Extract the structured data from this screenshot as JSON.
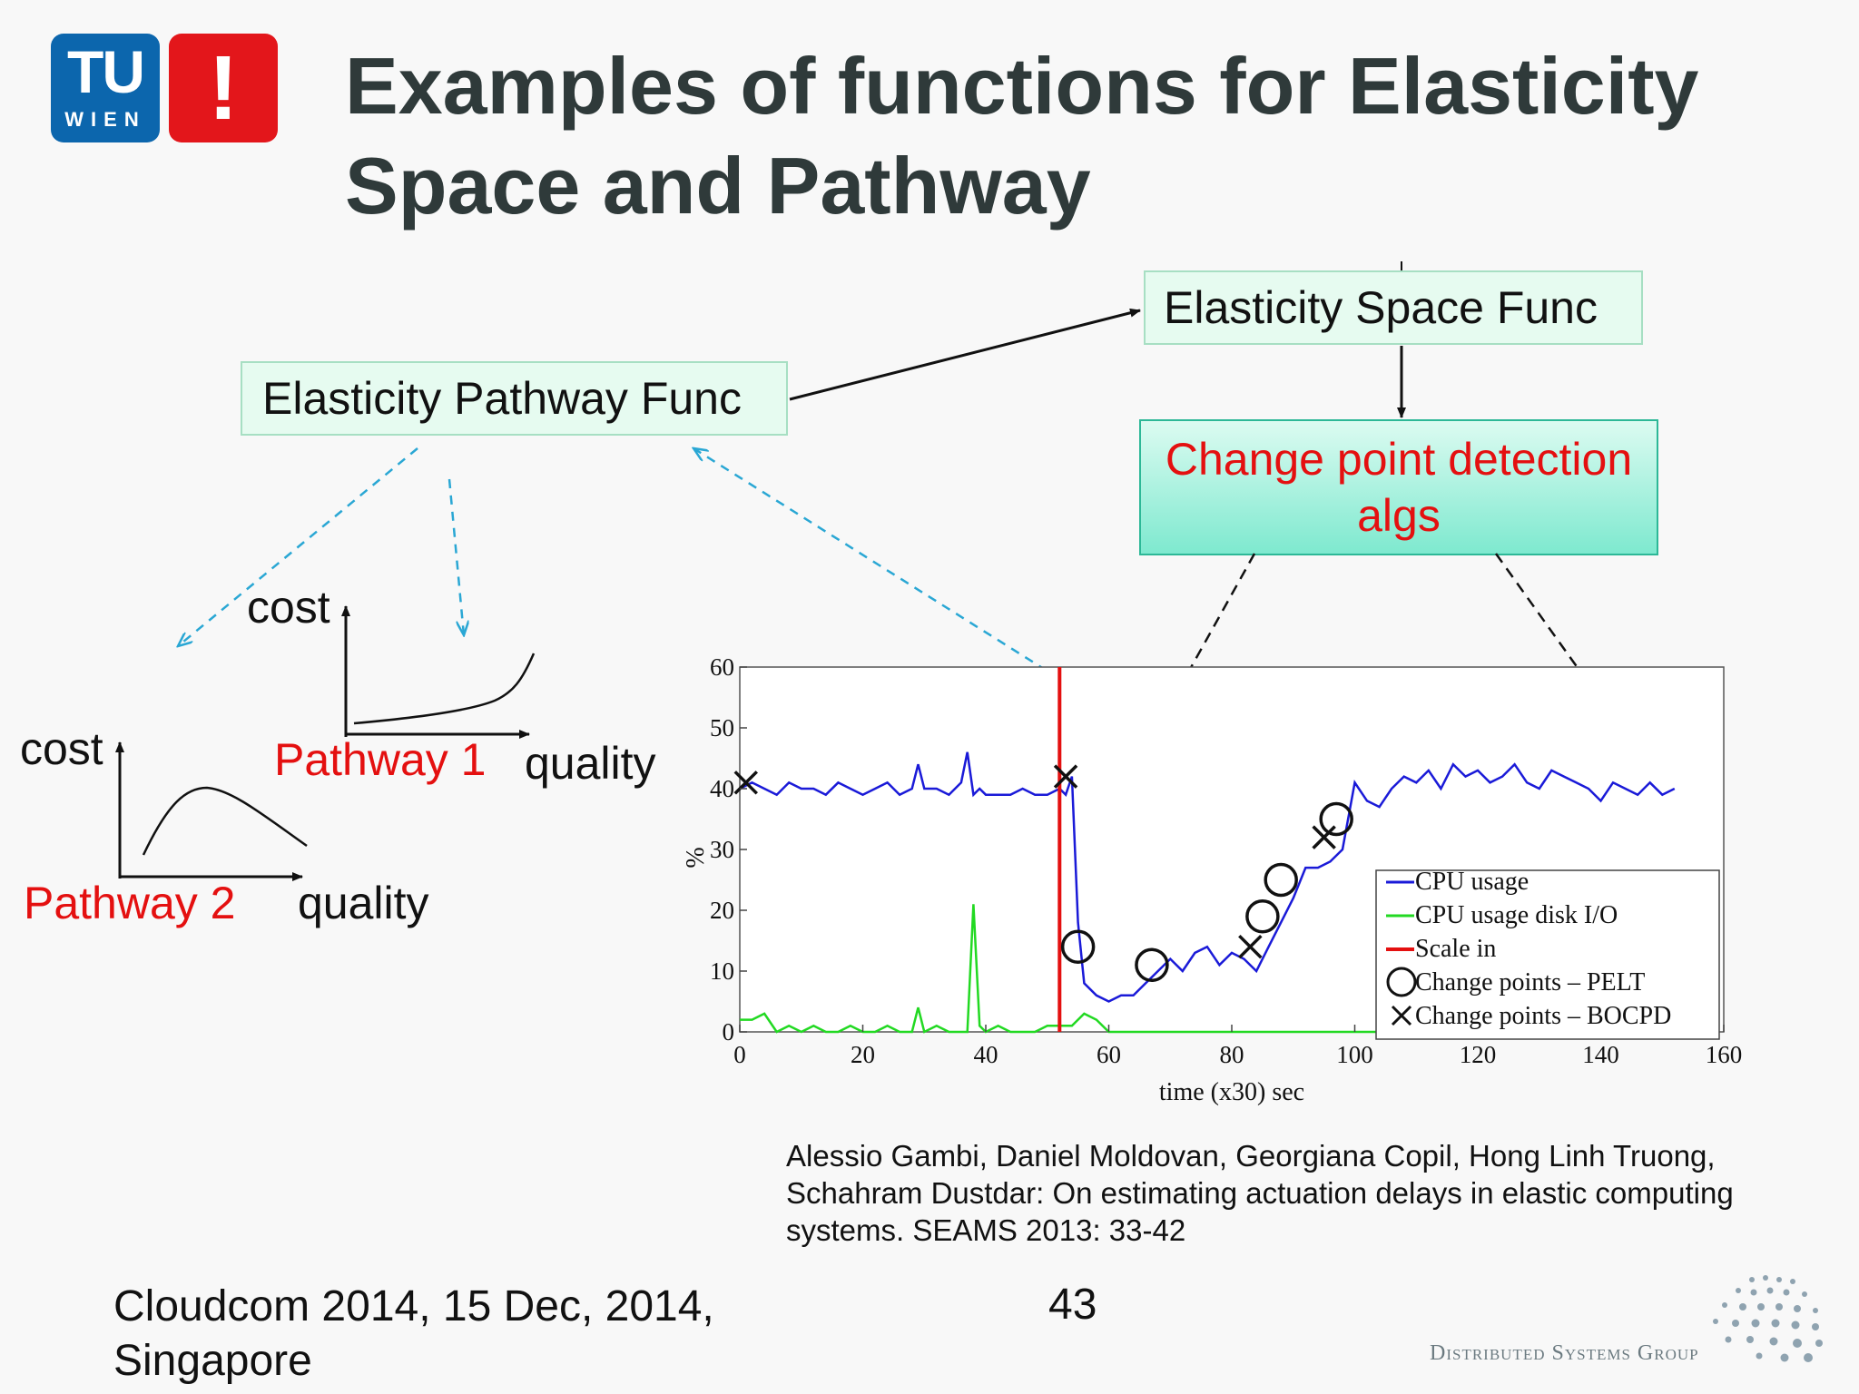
{
  "logo": {
    "tu_text": "TU",
    "wien_text": "WIEN",
    "exclamation": "!"
  },
  "title": "Examples of functions for Elasticity Space and Pathway",
  "boxes": {
    "space": "Elasticity Space Func",
    "pathway": "Elasticity Pathway Func",
    "cpd": "Change point detection algs"
  },
  "pathway1": {
    "ylabel": "cost",
    "xlabel": "quality",
    "name": "Pathway 1"
  },
  "pathway2": {
    "ylabel": "cost",
    "xlabel": "quality",
    "name": "Pathway 2"
  },
  "colors": {
    "accent_red": "#e41010",
    "tu_blue": "#0c66ad",
    "dashed_blue": "#2aa7d4",
    "box_green": "#e6fbf0"
  },
  "chart_data": {
    "type": "line",
    "xlabel": "time (x30) sec",
    "ylabel": "%",
    "xlim": [
      0,
      160
    ],
    "ylim": [
      0,
      60
    ],
    "xticks": [
      0,
      20,
      40,
      60,
      80,
      100,
      120,
      140,
      160
    ],
    "yticks": [
      0,
      10,
      20,
      30,
      40,
      50,
      60
    ],
    "legend": [
      "CPU usage",
      "CPU usage disk I/O",
      "Scale in",
      "Change points – PELT",
      "Change points – BOCPD"
    ],
    "legend_position": "bottom-right",
    "series": [
      {
        "name": "CPU usage",
        "color": "#1a1ad8",
        "x": [
          0,
          2,
          4,
          6,
          8,
          10,
          12,
          14,
          16,
          18,
          20,
          22,
          24,
          26,
          28,
          29,
          30,
          32,
          34,
          36,
          37,
          38,
          39,
          40,
          42,
          44,
          46,
          48,
          50,
          52,
          53,
          54,
          55,
          56,
          58,
          60,
          62,
          64,
          66,
          68,
          70,
          72,
          74,
          76,
          78,
          80,
          82,
          84,
          86,
          88,
          90,
          92,
          94,
          96,
          98,
          100,
          102,
          104,
          106,
          108,
          110,
          112,
          114,
          116,
          118,
          120,
          122,
          124,
          126,
          128,
          130,
          132,
          134,
          136,
          138,
          140,
          142,
          144,
          146,
          148,
          150,
          152
        ],
        "y": [
          40,
          41,
          40,
          39,
          41,
          40,
          40,
          39,
          41,
          40,
          39,
          40,
          41,
          39,
          40,
          44,
          40,
          40,
          39,
          41,
          46,
          39,
          40,
          39,
          39,
          39,
          40,
          39,
          39,
          40,
          39,
          42,
          18,
          8,
          6,
          5,
          6,
          6,
          8,
          10,
          12,
          10,
          13,
          14,
          11,
          13,
          12,
          10,
          14,
          18,
          22,
          27,
          27,
          28,
          30,
          41,
          38,
          37,
          40,
          42,
          41,
          43,
          40,
          44,
          42,
          43,
          41,
          42,
          44,
          41,
          40,
          43,
          42,
          41,
          40,
          38,
          41,
          40,
          39,
          41,
          39,
          40
        ]
      },
      {
        "name": "CPU usage disk I/O",
        "color": "#22d922",
        "x": [
          0,
          2,
          4,
          6,
          8,
          10,
          12,
          14,
          16,
          18,
          20,
          22,
          24,
          26,
          28,
          29,
          30,
          32,
          34,
          36,
          37,
          38,
          39,
          40,
          42,
          44,
          46,
          48,
          50,
          52,
          54,
          56,
          58,
          60,
          62,
          64,
          66,
          70,
          80,
          90,
          100,
          110,
          120,
          130,
          140,
          150,
          152
        ],
        "y": [
          2,
          2,
          3,
          0,
          1,
          0,
          1,
          0,
          0,
          1,
          0,
          0,
          1,
          0,
          0,
          4,
          0,
          1,
          0,
          0,
          0,
          21,
          1,
          0,
          1,
          0,
          0,
          0,
          1,
          1,
          1,
          3,
          2,
          0,
          0,
          0,
          0,
          0,
          0,
          0,
          0,
          0,
          0,
          1,
          0,
          0,
          0
        ]
      }
    ],
    "scale_in": {
      "name": "Scale in",
      "x": 52,
      "color": "#e41010"
    },
    "pelt_points": [
      {
        "x": 55,
        "y": 14
      },
      {
        "x": 67,
        "y": 11
      },
      {
        "x": 85,
        "y": 19
      },
      {
        "x": 88,
        "y": 25
      },
      {
        "x": 97,
        "y": 35
      }
    ],
    "bocpd_points": [
      {
        "x": 1,
        "y": 41
      },
      {
        "x": 53,
        "y": 42
      },
      {
        "x": 83,
        "y": 14
      },
      {
        "x": 95,
        "y": 32
      }
    ]
  },
  "citation": "Alessio Gambi, Daniel Moldovan, Georgiana Copil, Hong Linh Truong, Schahram Dustdar: On estimating actuation delays in elastic computing systems. SEAMS 2013: 33-42",
  "footer": {
    "conference": "Cloudcom 2014, 15 Dec, 2014, Singapore",
    "page_number": "43",
    "group_name": "Distributed Systems Group"
  }
}
